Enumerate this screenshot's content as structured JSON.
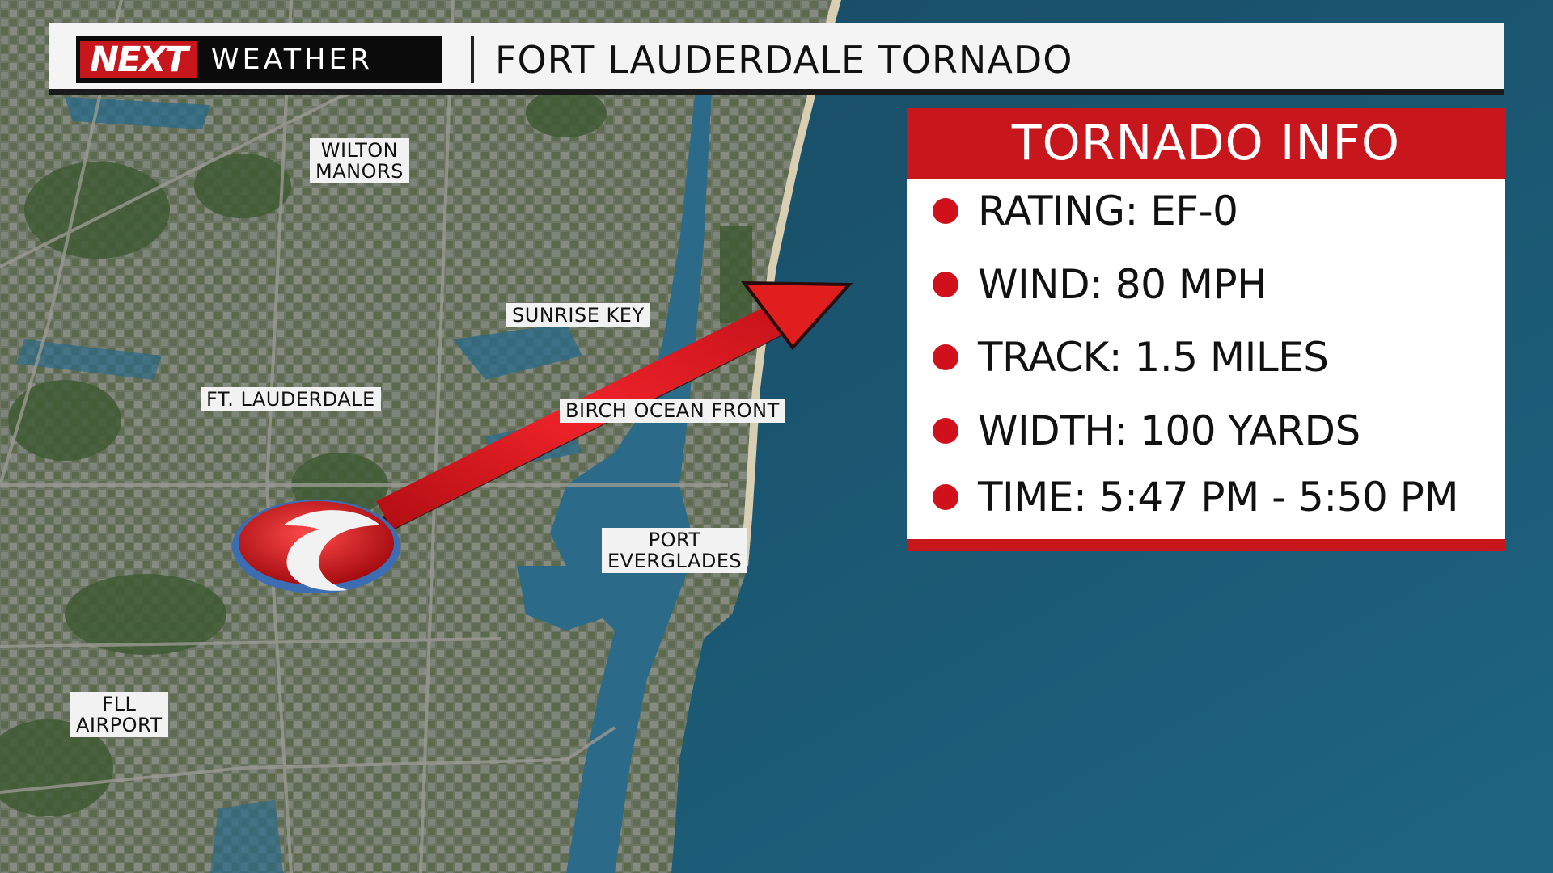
{
  "header": {
    "logo_next": "NEXT",
    "logo_weather": "WEATHER",
    "title": "FORT LAUDERDALE TORNADO"
  },
  "map": {
    "labels": {
      "wilton_manors": "WILTON\nMANORS",
      "sunrise_key": "SUNRISE KEY",
      "ft_lauderdale": "FT. LAUDERDALE",
      "birch_ocean_front": "BIRCH OCEAN FRONT",
      "port_everglades": "PORT\nEVERGLADES",
      "fll_airport": "FLL\nAIRPORT"
    },
    "colors": {
      "ocean": "#1d5670",
      "land": "#5c6f4f",
      "water": "#2a6a8a",
      "track": "#e01e1e"
    },
    "track_marker_icon": "hurricane-symbol-icon",
    "track_arrow_icon": "track-arrow-icon"
  },
  "info_panel": {
    "title": "TORNADO INFO",
    "items": [
      "RATING: EF-0",
      "WIND: 80 MPH",
      "TRACK: 1.5 MILES",
      "WIDTH: 100 YARDS",
      "TIME: 5:47 PM - 5:50 PM"
    ],
    "accent": "#c8161d"
  }
}
